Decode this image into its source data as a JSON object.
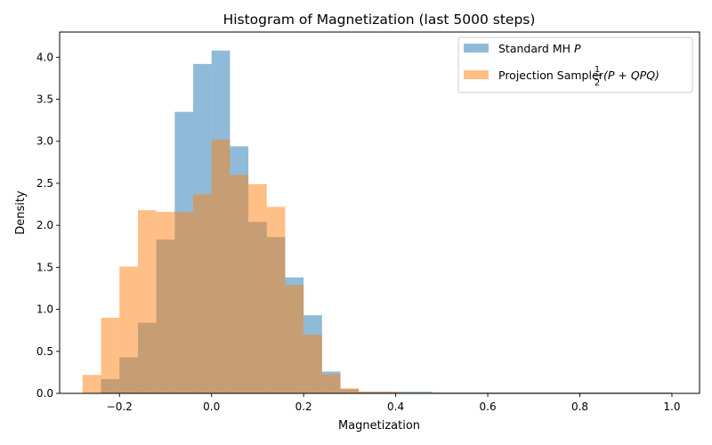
{
  "chart_data": {
    "type": "bar",
    "title": "Histogram of Magnetization (last 5000 steps)",
    "xlabel": "Magnetization",
    "ylabel": "Density",
    "xlim": [
      -0.33,
      1.06
    ],
    "ylim": [
      0,
      4.3
    ],
    "grid": false,
    "legend_position": "top-right",
    "x_ticks": [
      {
        "value": -0.2,
        "label": "−0.2"
      },
      {
        "value": 0.0,
        "label": "0.0"
      },
      {
        "value": 0.2,
        "label": "0.2"
      },
      {
        "value": 0.4,
        "label": "0.4"
      },
      {
        "value": 0.6,
        "label": "0.6"
      },
      {
        "value": 0.8,
        "label": "0.8"
      },
      {
        "value": 1.0,
        "label": "1.0"
      }
    ],
    "y_ticks": [
      {
        "value": 0.0,
        "label": "0.0"
      },
      {
        "value": 0.5,
        "label": "0.5"
      },
      {
        "value": 1.0,
        "label": "1.0"
      },
      {
        "value": 1.5,
        "label": "1.5"
      },
      {
        "value": 2.0,
        "label": "2.0"
      },
      {
        "value": 2.5,
        "label": "2.5"
      },
      {
        "value": 3.0,
        "label": "3.0"
      },
      {
        "value": 3.5,
        "label": "3.5"
      },
      {
        "value": 4.0,
        "label": "4.0"
      }
    ],
    "series": [
      {
        "name": "Standard MH P",
        "legend": {
          "prefix": "Standard MH ",
          "math": "P"
        },
        "color": "#1f77b4",
        "alpha": 0.5,
        "bins": [
          {
            "x0": -0.24,
            "x1": -0.2,
            "y": 0.17
          },
          {
            "x0": -0.2,
            "x1": -0.16,
            "y": 0.43
          },
          {
            "x0": -0.16,
            "x1": -0.12,
            "y": 0.84
          },
          {
            "x0": -0.12,
            "x1": -0.08,
            "y": 1.83
          },
          {
            "x0": -0.08,
            "x1": -0.04,
            "y": 3.35
          },
          {
            "x0": -0.04,
            "x1": 0.0,
            "y": 3.92
          },
          {
            "x0": 0.0,
            "x1": 0.04,
            "y": 4.08
          },
          {
            "x0": 0.04,
            "x1": 0.08,
            "y": 2.94
          },
          {
            "x0": 0.08,
            "x1": 0.12,
            "y": 2.04
          },
          {
            "x0": 0.12,
            "x1": 0.16,
            "y": 1.86
          },
          {
            "x0": 0.16,
            "x1": 0.2,
            "y": 1.38
          },
          {
            "x0": 0.2,
            "x1": 0.24,
            "y": 0.93
          },
          {
            "x0": 0.24,
            "x1": 0.28,
            "y": 0.26
          },
          {
            "x0": 0.28,
            "x1": 0.32,
            "y": 0.05
          },
          {
            "x0": 0.32,
            "x1": 0.4,
            "y": 0.02
          },
          {
            "x0": 0.4,
            "x1": 0.48,
            "y": 0.02
          },
          {
            "x0": 0.48,
            "x1": 1.0,
            "y": 0.01
          }
        ]
      },
      {
        "name": "Projection Sampler 1/2(P + QPQ)",
        "legend": {
          "prefix": "Projection Sampler ",
          "frac_num": "1",
          "frac_den": "2",
          "math": "(P + QPQ)"
        },
        "color": "#ff7f0e",
        "alpha": 0.5,
        "bins": [
          {
            "x0": -0.28,
            "x1": -0.24,
            "y": 0.22
          },
          {
            "x0": -0.24,
            "x1": -0.2,
            "y": 0.9
          },
          {
            "x0": -0.2,
            "x1": -0.16,
            "y": 1.51
          },
          {
            "x0": -0.16,
            "x1": -0.12,
            "y": 2.18
          },
          {
            "x0": -0.12,
            "x1": -0.08,
            "y": 2.16
          },
          {
            "x0": -0.08,
            "x1": -0.04,
            "y": 2.16
          },
          {
            "x0": -0.04,
            "x1": 0.0,
            "y": 2.37
          },
          {
            "x0": 0.0,
            "x1": 0.04,
            "y": 3.02
          },
          {
            "x0": 0.04,
            "x1": 0.08,
            "y": 2.6
          },
          {
            "x0": 0.08,
            "x1": 0.12,
            "y": 2.49
          },
          {
            "x0": 0.12,
            "x1": 0.16,
            "y": 2.22
          },
          {
            "x0": 0.16,
            "x1": 0.2,
            "y": 1.29
          },
          {
            "x0": 0.2,
            "x1": 0.24,
            "y": 0.7
          },
          {
            "x0": 0.24,
            "x1": 0.28,
            "y": 0.23
          },
          {
            "x0": 0.28,
            "x1": 0.32,
            "y": 0.06
          },
          {
            "x0": 0.32,
            "x1": 0.4,
            "y": 0.02
          },
          {
            "x0": 0.4,
            "x1": 0.48,
            "y": 0.01
          },
          {
            "x0": 0.48,
            "x1": 1.0,
            "y": 0.01
          }
        ]
      }
    ]
  }
}
